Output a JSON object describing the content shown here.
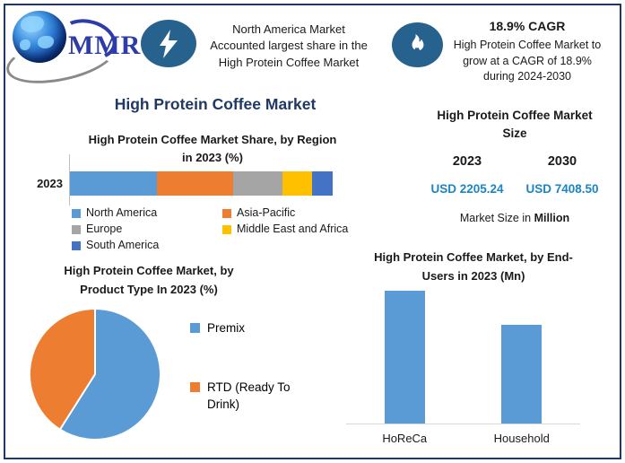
{
  "colors": {
    "navy": "#1F3864",
    "value_blue": "#1B85C4",
    "badge_blue": "#27618E",
    "axis_gray": "#BFBFBF"
  },
  "icons": {
    "logo": "globe-swoosh",
    "highlight_badge": "lightning-bolt",
    "cagr_badge": "flame"
  },
  "logo": {
    "text": "MMR"
  },
  "header": {
    "highlight": {
      "lines": [
        "North America Market",
        "Accounted largest share in the",
        "High Protein Coffee Market"
      ]
    },
    "cagr": {
      "title": "18.9% CAGR",
      "lines": [
        "High Protein Coffee Market to",
        "grow at a CAGR of 18.9%",
        "during 2024-2030"
      ]
    }
  },
  "main_title": "High Protein Coffee Market",
  "market_size": {
    "title_lines": [
      "High Protein Coffee Market",
      "Size"
    ],
    "years": [
      "2023",
      "2030"
    ],
    "values": [
      "USD 2205.24",
      "USD 7408.50"
    ],
    "footnote_prefix": "Market Size in",
    "footnote_bold": "Million"
  },
  "chart_data": [
    {
      "id": "region-share",
      "type": "bar",
      "variant": "stacked-horizontal",
      "title": "High Protein Coffee Market Share, by Region in 2023 (%)",
      "title_lines": [
        "High Protein Coffee Market Share, by Region",
        "in 2023 (%)"
      ],
      "categories": [
        "2023"
      ],
      "series": [
        {
          "name": "North America",
          "value": 33,
          "color": "#5B9BD5"
        },
        {
          "name": "Asia-Pacific",
          "value": 29,
          "color": "#ED7D31"
        },
        {
          "name": "Europe",
          "value": 19,
          "color": "#A5A5A5"
        },
        {
          "name": "Middle East and Africa",
          "value": 11,
          "color": "#FFC000"
        },
        {
          "name": "South America",
          "value": 8,
          "color": "#4472C4"
        }
      ],
      "unit": "%",
      "legend_position": "bottom",
      "note": "segment values estimated from bar widths; no data labels shown"
    },
    {
      "id": "product-type-pie",
      "type": "pie",
      "title": "High Protein Coffee Market, by Product Type In 2023 (%)",
      "title_lines": [
        "High Protein Coffee Market, by",
        "Product Type In 2023 (%)"
      ],
      "slices": [
        {
          "name": "Premix",
          "value": 59,
          "color": "#5B9BD5"
        },
        {
          "name": "RTD (Ready To Drink)",
          "value": 41,
          "color": "#ED7D31"
        }
      ],
      "unit": "%",
      "legend_position": "right",
      "note": "slice values estimated from angles; no data labels shown"
    },
    {
      "id": "end-users",
      "type": "bar",
      "variant": "vertical",
      "title": "High Protein Coffee Market, by End-Users in 2023 (Mn)",
      "title_lines": [
        "High Protein Coffee Market, by End-",
        "Users in 2023 (Mn)"
      ],
      "categories": [
        "HoReCa",
        "Household"
      ],
      "values": [
        100,
        74
      ],
      "color": "#5B9BD5",
      "unit": "Mn",
      "legend_position": "none",
      "note": "no axis scale shown; values are relative bar heights (HoReCa = 100)"
    }
  ]
}
